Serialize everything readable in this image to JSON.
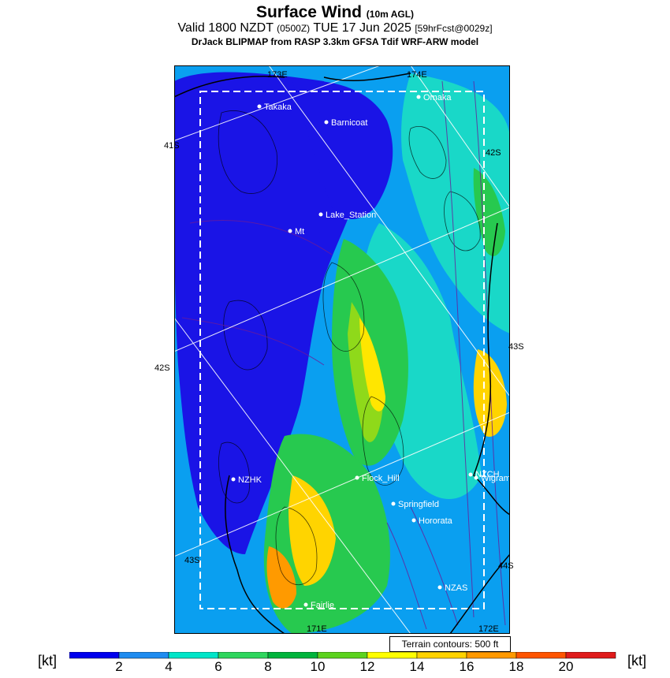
{
  "title": "Surface Wind",
  "title_sub": "(10m AGL)",
  "valid_prefix": "Valid 1800 NZDT",
  "valid_utc": "(0500Z)",
  "valid_date": "TUE 17 Jun 2025",
  "forecast_tag": "[59hrFcst@0029z]",
  "model_line": "DrJack BLIPMAP from RASP 3.3km GFSA Tdif WRF-ARW model",
  "lat_labels": {
    "left_41": "41S",
    "left_42": "42S",
    "left_43": "43S",
    "right_42": "42S",
    "right_43": "43S",
    "right_44": "44S"
  },
  "lon_labels": {
    "top_173": "173E",
    "top_174": "174E",
    "bottom_171": "171E",
    "bottom_172": "172E"
  },
  "stations": [
    {
      "name": "Takaka"
    },
    {
      "name": "Barnicoat"
    },
    {
      "name": "Omaka"
    },
    {
      "name": "Lake_Station"
    },
    {
      "name": "Mt"
    },
    {
      "name": "NZHK"
    },
    {
      "name": "Flock_Hill"
    },
    {
      "name": "Springfield"
    },
    {
      "name": "Hororata"
    },
    {
      "name": "NZCH"
    },
    {
      "name": "Wigram"
    },
    {
      "name": "NZAS"
    },
    {
      "name": "Fairlie"
    }
  ],
  "terrain_label": "Terrain contours: 500 ft",
  "scale": {
    "unit": "[kt]",
    "ticks": [
      "2",
      "4",
      "6",
      "8",
      "10",
      "12",
      "14",
      "16",
      "18",
      "20"
    ],
    "colors": [
      "#0000ee",
      "#1f8cf0",
      "#00e5c8",
      "#2fd65e",
      "#00b43c",
      "#5cd21e",
      "#ffff00",
      "#ffd200",
      "#ff9900",
      "#ff5500",
      "#e01b1b",
      "#c80064",
      "#6a1b9a"
    ]
  }
}
